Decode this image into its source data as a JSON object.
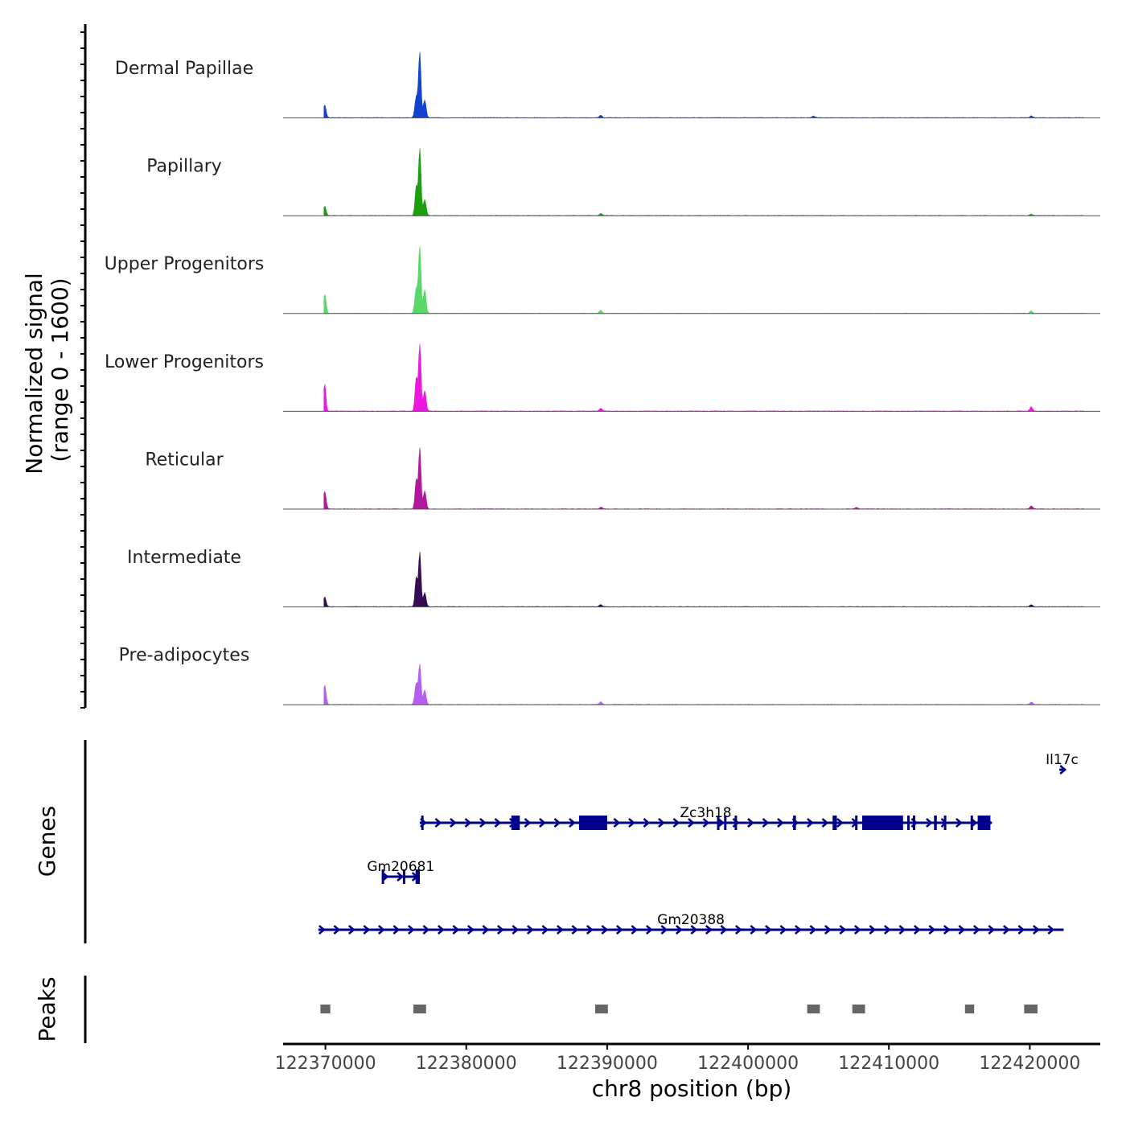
{
  "chart_data": {
    "type": "area",
    "chromosome": "chr8",
    "xlabel": "chr8 position (bp)",
    "xlim": [
      122367000,
      122425000
    ],
    "x_ticks": [
      122370000,
      122380000,
      122390000,
      122400000,
      122410000,
      122420000
    ],
    "tick_labels": [
      "122370000",
      "122380000",
      "122390000",
      "122400000",
      "122410000",
      "122420000"
    ],
    "signal_ylabel": "Normalized signal",
    "signal_ylabel_range": "(range 0 - 1600)",
    "ylim": [
      0,
      1600
    ],
    "tracks": [
      {
        "name": "Dermal Papillae",
        "color": "#1242d1",
        "peaks": [
          {
            "x": 122369950,
            "h": 300
          },
          {
            "x": 122376700,
            "h": 1550
          },
          {
            "x": 122376450,
            "h": 500
          },
          {
            "x": 122377050,
            "h": 420
          },
          {
            "x": 122389550,
            "h": 60
          },
          {
            "x": 122404650,
            "h": 40
          },
          {
            "x": 122420100,
            "h": 45
          }
        ]
      },
      {
        "name": "Papillary",
        "color": "#1aa00e",
        "peaks": [
          {
            "x": 122369950,
            "h": 220
          },
          {
            "x": 122376700,
            "h": 1600
          },
          {
            "x": 122376450,
            "h": 700
          },
          {
            "x": 122377050,
            "h": 380
          },
          {
            "x": 122389550,
            "h": 45
          },
          {
            "x": 122420100,
            "h": 35
          }
        ]
      },
      {
        "name": "Upper Progenitors",
        "color": "#5ad86a",
        "peaks": [
          {
            "x": 122369950,
            "h": 450
          },
          {
            "x": 122376700,
            "h": 1600
          },
          {
            "x": 122376450,
            "h": 600
          },
          {
            "x": 122377050,
            "h": 560
          },
          {
            "x": 122389550,
            "h": 70
          },
          {
            "x": 122420100,
            "h": 60
          }
        ]
      },
      {
        "name": "Lower Progenitors",
        "color": "#ec18e0",
        "peaks": [
          {
            "x": 122369950,
            "h": 650
          },
          {
            "x": 122376700,
            "h": 1600
          },
          {
            "x": 122376450,
            "h": 800
          },
          {
            "x": 122377050,
            "h": 480
          },
          {
            "x": 122389550,
            "h": 70
          },
          {
            "x": 122420100,
            "h": 100
          }
        ]
      },
      {
        "name": "Reticular",
        "color": "#b2189b",
        "peaks": [
          {
            "x": 122369950,
            "h": 420
          },
          {
            "x": 122376700,
            "h": 1450
          },
          {
            "x": 122376450,
            "h": 700
          },
          {
            "x": 122377050,
            "h": 420
          },
          {
            "x": 122389550,
            "h": 40
          },
          {
            "x": 122407700,
            "h": 40
          },
          {
            "x": 122420100,
            "h": 70
          }
        ]
      },
      {
        "name": "Intermediate",
        "color": "#360c52",
        "peaks": [
          {
            "x": 122369950,
            "h": 230
          },
          {
            "x": 122376700,
            "h": 1300
          },
          {
            "x": 122376450,
            "h": 700
          },
          {
            "x": 122377050,
            "h": 330
          },
          {
            "x": 122389550,
            "h": 50
          },
          {
            "x": 122420100,
            "h": 45
          }
        ]
      },
      {
        "name": "Pre-adipocytes",
        "color": "#b45ff0",
        "peaks": [
          {
            "x": 122369950,
            "h": 460
          },
          {
            "x": 122376700,
            "h": 950
          },
          {
            "x": 122376450,
            "h": 500
          },
          {
            "x": 122377050,
            "h": 340
          },
          {
            "x": 122389550,
            "h": 60
          },
          {
            "x": 122420100,
            "h": 60
          }
        ]
      }
    ],
    "genes_label": "Genes",
    "gene_color": "#00008b",
    "genes": [
      {
        "name": "Il17c",
        "row": 0,
        "start": 122422100,
        "end": 122422400,
        "exons": []
      },
      {
        "name": "Zc3h18",
        "row": 1,
        "start": 122376700,
        "end": 122417300,
        "exons": [
          [
            122376800,
            122376950
          ],
          [
            122383200,
            122383800
          ],
          [
            122388000,
            122390000
          ],
          [
            122397800,
            122397950
          ],
          [
            122398300,
            122398450
          ],
          [
            122399050,
            122399150
          ],
          [
            122403200,
            122403400
          ],
          [
            122406000,
            122406300
          ],
          [
            122407600,
            122407750
          ],
          [
            122408100,
            122411000
          ],
          [
            122411300,
            122411450
          ],
          [
            122411700,
            122411800
          ],
          [
            122413200,
            122413400
          ],
          [
            122413900,
            122414000
          ],
          [
            122415800,
            122415900
          ],
          [
            122416300,
            122417200
          ]
        ]
      },
      {
        "name": "Gm20681",
        "row": 2,
        "start": 122374000,
        "end": 122376700,
        "exons": [
          [
            122374000,
            122374150
          ],
          [
            122375500,
            122375600
          ],
          [
            122376400,
            122376700
          ]
        ]
      },
      {
        "name": "Gm20388",
        "row": 3,
        "start": 122369500,
        "end": 122422400,
        "exons": []
      }
    ],
    "peaks_label": "Peaks",
    "peak_color": "#666666",
    "peak_regions": [
      [
        122369650,
        122370350
      ],
      [
        122376250,
        122377150
      ],
      [
        122389150,
        122390050
      ],
      [
        122404200,
        122405100
      ],
      [
        122407400,
        122408300
      ],
      [
        122415400,
        122416050
      ],
      [
        122419600,
        122420550
      ]
    ]
  }
}
